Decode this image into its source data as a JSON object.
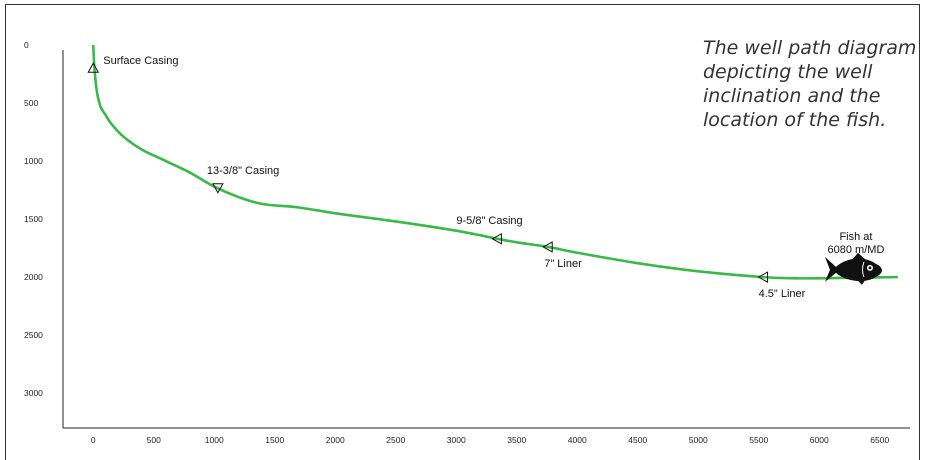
{
  "caption": {
    "lines": [
      "The well path diagram",
      "depicting the well",
      "inclination and the",
      "location of the fish."
    ]
  },
  "colors": {
    "well_path": "#3cb84a",
    "axis": "#222222",
    "fish": "#111111"
  },
  "chart_data": {
    "type": "line",
    "xlim": [
      -250,
      6750
    ],
    "ylim": [
      0,
      3300
    ],
    "y_inverted": true,
    "x_ticks": [
      0,
      500,
      1000,
      1500,
      2000,
      2500,
      3000,
      3500,
      4000,
      4500,
      5000,
      5500,
      6000,
      6500
    ],
    "y_ticks": [
      0,
      500,
      1000,
      1500,
      2000,
      2500,
      3000
    ],
    "series": [
      {
        "x": [
          0,
          10,
          30,
          60,
          100,
          150,
          250,
          400,
          600,
          800,
          1000,
          1200,
          1400,
          1700,
          2000,
          2500,
          3000,
          3340,
          3500,
          3760,
          4000,
          4500,
          5000,
          5540,
          5800,
          6000,
          6300,
          6650
        ],
        "y": [
          0,
          200,
          400,
          530,
          600,
          680,
          790,
          900,
          1000,
          1100,
          1220,
          1310,
          1370,
          1400,
          1450,
          1520,
          1600,
          1670,
          1700,
          1740,
          1790,
          1880,
          1950,
          2000,
          2010,
          2010,
          2005,
          2000
        ]
      }
    ],
    "markers": [
      {
        "label": "Surface Casing",
        "x": 0,
        "y": 200,
        "dir": "up"
      },
      {
        "label": "13-3/8\" Casing",
        "x": 1030,
        "y": 1230,
        "dir": "down"
      },
      {
        "label": "9-5/8\" Casing",
        "x": 3340,
        "y": 1670,
        "dir": "left"
      },
      {
        "label": "7\" Liner",
        "x": 3760,
        "y": 1740,
        "dir": "left"
      },
      {
        "label": "4.5\" Liner",
        "x": 5540,
        "y": 2000,
        "dir": "left"
      }
    ],
    "fish": {
      "label_line1": "Fish at",
      "label_line2": "6080 m/MD",
      "x": 6320,
      "y": 1800
    }
  }
}
